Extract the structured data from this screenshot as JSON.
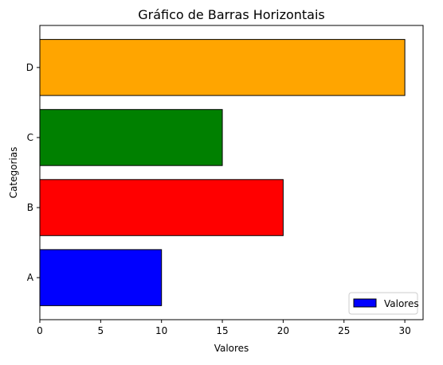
{
  "chart_data": {
    "type": "bar",
    "orientation": "horizontal",
    "title": "Gráfico de Barras Horizontais",
    "xlabel": "Valores",
    "ylabel": "Categorias",
    "categories": [
      "A",
      "B",
      "C",
      "D"
    ],
    "values": [
      10,
      20,
      15,
      30
    ],
    "colors": [
      "#0000ff",
      "#ff0000",
      "#008000",
      "#ffa500"
    ],
    "edge_color": "#000000",
    "xlim": [
      0,
      31.5
    ],
    "xticks": [
      0,
      5,
      10,
      15,
      20,
      25,
      30
    ],
    "grid": false,
    "legend": {
      "position": "lower right",
      "entries": [
        {
          "label": "Valores",
          "color": "#0000ff"
        }
      ]
    }
  }
}
